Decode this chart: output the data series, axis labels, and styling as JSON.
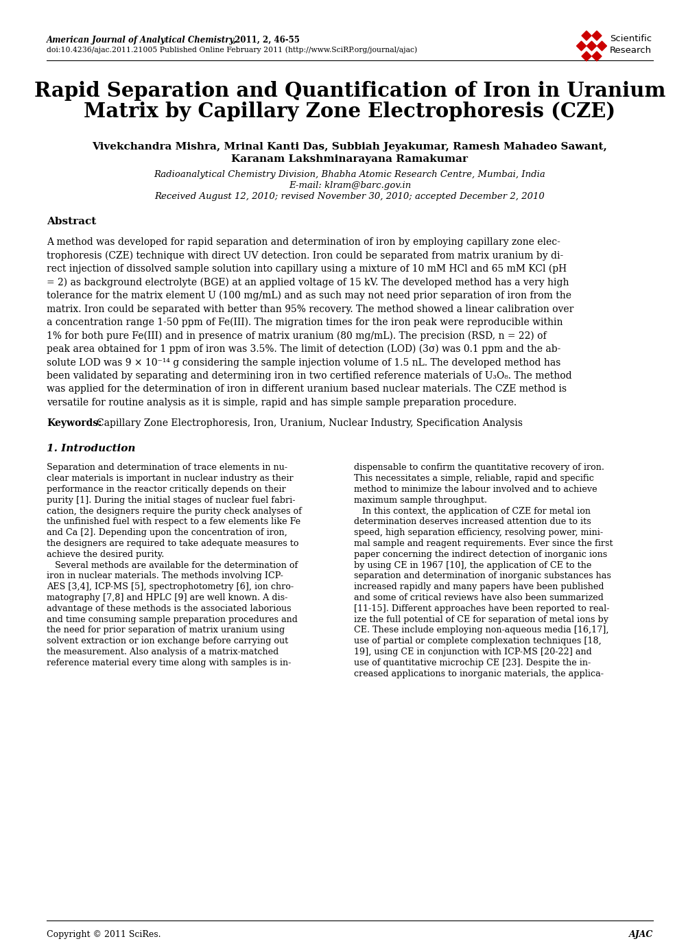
{
  "title_line1": "Rapid Separation and Quantification of Iron in Uranium",
  "title_line2": "Matrix by Capillary Zone Electrophoresis (CZE)",
  "journal_line1_italic": "American Journal of Analytical Chemistry,",
  "journal_line1_normal": " 2011, 2, 46-55",
  "journal_line2": "doi:10.4236/ajac.2011.21005 Published Online February 2011 (http://www.SciRP.org/journal/ajac)",
  "authors": "Vivekchandra Mishra, Mrinal Kanti Das, Subbiah Jeyakumar, Ramesh Mahadeo Sawant,",
  "authors2": "Karanam Lakshminarayana Ramakumar",
  "affil1": "Radioanalytical Chemistry Division, Bhabha Atomic Research Centre, Mumbai, India",
  "affil2": "E-mail: klram@barc.gov.in",
  "affil3_italic": "Received August",
  "affil3_normal": " 12, 2010; ",
  "affil3_italic2": "revised November",
  "affil3_normal2": " 30, 2010; ",
  "affil3_italic3": "accepted December",
  "affil3_normal3": " 2, 2010",
  "abstract_title": "Abstract",
  "abstract_lines": [
    "A method was developed for rapid separation and determination of iron by employing capillary zone elec-",
    "trophoresis (CZE) technique with direct UV detection. Iron could be separated from matrix uranium by di-",
    "rect injection of dissolved sample solution into capillary using a mixture of 10 mM HCl and 65 mM KCl (pH",
    "= 2) as background electrolyte (BGE) at an applied voltage of 15 kV. The developed method has a very high",
    "tolerance for the matrix element U (100 mg/mL) and as such may not need prior separation of iron from the",
    "matrix. Iron could be separated with better than 95% recovery. The method showed a linear calibration over",
    "a concentration range 1-50 ppm of Fe(III). The migration times for the iron peak were reproducible within",
    "1% for both pure Fe(III) and in presence of matrix uranium (80 mg/mL). The precision (RSD, n = 22) of",
    "peak area obtained for 1 ppm of iron was 3.5%. The limit of detection (LOD) (3σ) was 0.1 ppm and the ab-",
    "solute LOD was 9 × 10⁻¹⁴ g considering the sample injection volume of 1.5 nL. The developed method has",
    "been validated by separating and determining iron in two certified reference materials of U₃O₈. The method",
    "was applied for the determination of iron in different uranium based nuclear materials. The CZE method is",
    "versatile for routine analysis as it is simple, rapid and has simple sample preparation procedure."
  ],
  "keywords_label": "Keywords:",
  "keywords_text": "Capillary Zone Electrophoresis, Iron, Uranium, Nuclear Industry, Specification Analysis",
  "section1_title": "1. Introduction",
  "intro_col1_lines": [
    "Separation and determination of trace elements in nu-",
    "clear materials is important in nuclear industry as their",
    "performance in the reactor critically depends on their",
    "purity [1]. During the initial stages of nuclear fuel fabri-",
    "cation, the designers require the purity check analyses of",
    "the unfinished fuel with respect to a few elements like Fe",
    "and Ca [2]. Depending upon the concentration of iron,",
    "the designers are required to take adequate measures to",
    "achieve the desired purity.",
    "   Several methods are available for the determination of",
    "iron in nuclear materials. The methods involving ICP-",
    "AES [3,4], ICP-MS [5], spectrophotometry [6], ion chro-",
    "matography [7,8] and HPLC [9] are well known. A dis-",
    "advantage of these methods is the associated laborious",
    "and time consuming sample preparation procedures and",
    "the need for prior separation of matrix uranium using",
    "solvent extraction or ion exchange before carrying out",
    "the measurement. Also analysis of a matrix-matched",
    "reference material every time along with samples is in-"
  ],
  "intro_col2_lines": [
    "dispensable to confirm the quantitative recovery of iron.",
    "This necessitates a simple, reliable, rapid and specific",
    "method to minimize the labour involved and to achieve",
    "maximum sample throughput.",
    "   In this context, the application of CZE for metal ion",
    "determination deserves increased attention due to its",
    "speed, high separation efficiency, resolving power, mini-",
    "mal sample and reagent requirements. Ever since the first",
    "paper concerning the indirect detection of inorganic ions",
    "by using CE in 1967 [10], the application of CE to the",
    "separation and determination of inorganic substances has",
    "increased rapidly and many papers have been published",
    "and some of critical reviews have also been summarized",
    "[11-15]. Different approaches have been reported to real-",
    "ize the full potential of CE for separation of metal ions by",
    "CE. These include employing non-aqueous media [16,17],",
    "use of partial or complete complexation techniques [18,",
    "19], using CE in conjunction with ICP-MS [20-22] and",
    "use of quantitative microchip CE [23]. Despite the in-",
    "creased applications to inorganic materials, the applica-"
  ],
  "copyright": "Copyright © 2011 SciRes.",
  "journal_abbrev": "AJAC",
  "bg_color": "#ffffff",
  "text_color": "#000000",
  "logo_diamond_color": "#cc0000"
}
